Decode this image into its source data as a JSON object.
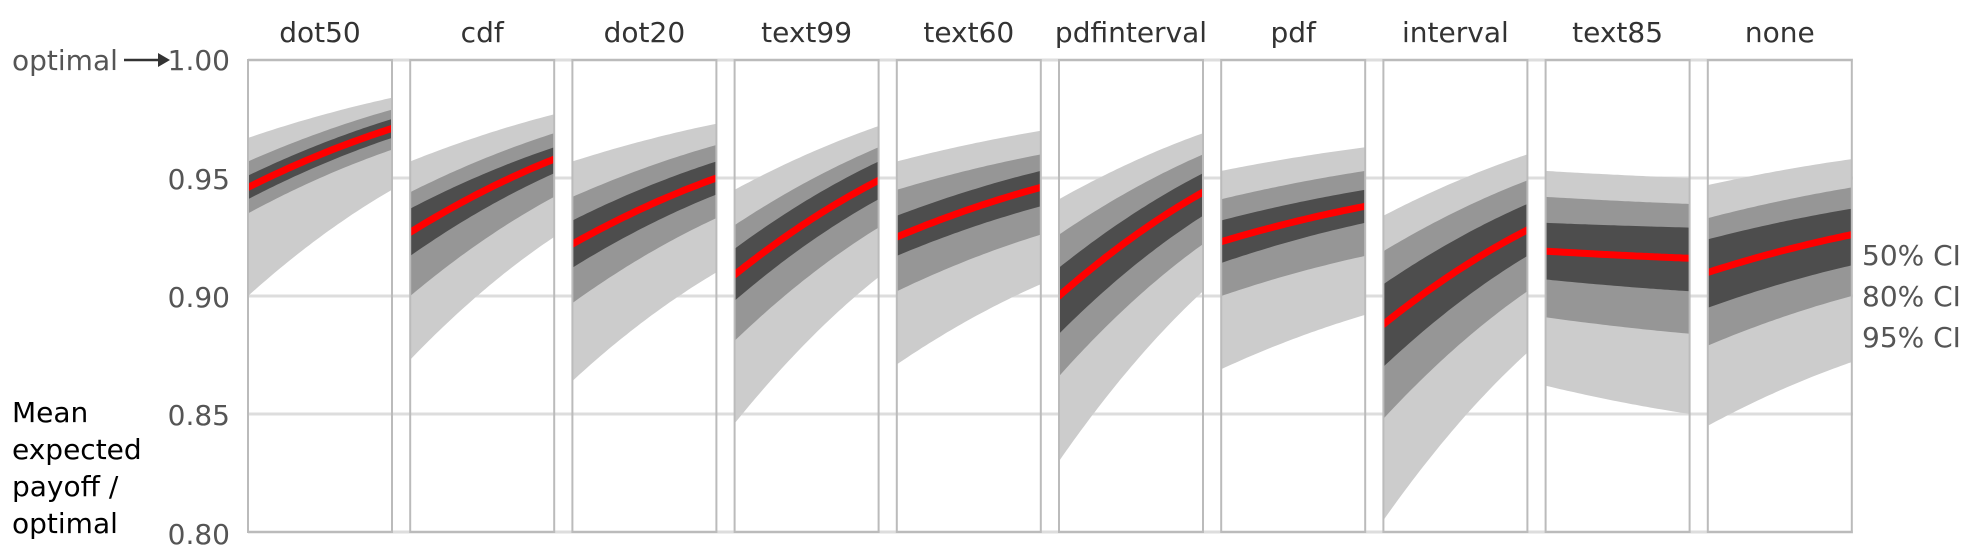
{
  "chart_data": {
    "type": "area",
    "ylabel_lines": [
      "Mean",
      "expected",
      "payoff /",
      "optimal"
    ],
    "ylim": [
      0.8,
      1.0
    ],
    "yticks": [
      "0.80",
      "0.85",
      "0.90",
      "0.95",
      "1.00"
    ],
    "x_range": [
      0,
      1
    ],
    "grid": true,
    "optimal_annotation": {
      "text": "optimal",
      "arrow": "→",
      "at": 1.0
    },
    "legend": [
      "50% CI",
      "80% CI",
      "95% CI"
    ],
    "colors": {
      "ci50": "#4d4d4d",
      "ci80": "#969696",
      "ci95": "#cccccc",
      "median": "#ff0000"
    },
    "facets": [
      {
        "title": "dot50",
        "median": [
          0.946,
          0.971
        ],
        "ci50": [
          [
            0.941,
            0.951
          ],
          [
            0.967,
            0.975
          ]
        ],
        "ci80": [
          [
            0.935,
            0.957
          ],
          [
            0.962,
            0.979
          ]
        ],
        "ci95": [
          [
            0.9,
            0.967
          ],
          [
            0.945,
            0.984
          ]
        ]
      },
      {
        "title": "cdf",
        "median": [
          0.927,
          0.958
        ],
        "ci50": [
          [
            0.917,
            0.937
          ],
          [
            0.952,
            0.963
          ]
        ],
        "ci80": [
          [
            0.9,
            0.944
          ],
          [
            0.942,
            0.969
          ]
        ],
        "ci95": [
          [
            0.873,
            0.957
          ],
          [
            0.925,
            0.977
          ]
        ]
      },
      {
        "title": "dot20",
        "median": [
          0.922,
          0.95
        ],
        "ci50": [
          [
            0.912,
            0.932
          ],
          [
            0.943,
            0.957
          ]
        ],
        "ci80": [
          [
            0.897,
            0.942
          ],
          [
            0.933,
            0.964
          ]
        ],
        "ci95": [
          [
            0.864,
            0.957
          ],
          [
            0.91,
            0.973
          ]
        ]
      },
      {
        "title": "text99",
        "median": [
          0.909,
          0.949
        ],
        "ci50": [
          [
            0.898,
            0.92
          ],
          [
            0.941,
            0.957
          ]
        ],
        "ci80": [
          [
            0.881,
            0.93
          ],
          [
            0.929,
            0.963
          ]
        ],
        "ci95": [
          [
            0.846,
            0.945
          ],
          [
            0.908,
            0.972
          ]
        ]
      },
      {
        "title": "text60",
        "median": [
          0.925,
          0.946
        ],
        "ci50": [
          [
            0.917,
            0.934
          ],
          [
            0.938,
            0.953
          ]
        ],
        "ci80": [
          [
            0.902,
            0.945
          ],
          [
            0.926,
            0.96
          ]
        ],
        "ci95": [
          [
            0.871,
            0.957
          ],
          [
            0.905,
            0.97
          ]
        ]
      },
      {
        "title": "pdfinterval",
        "median": [
          0.9,
          0.944
        ],
        "ci50": [
          [
            0.884,
            0.912
          ],
          [
            0.934,
            0.952
          ]
        ],
        "ci80": [
          [
            0.866,
            0.926
          ],
          [
            0.922,
            0.96
          ]
        ],
        "ci95": [
          [
            0.83,
            0.941
          ],
          [
            0.902,
            0.969
          ]
        ]
      },
      {
        "title": "pdf",
        "median": [
          0.923,
          0.938
        ],
        "ci50": [
          [
            0.914,
            0.932
          ],
          [
            0.931,
            0.945
          ]
        ],
        "ci80": [
          [
            0.9,
            0.941
          ],
          [
            0.917,
            0.953
          ]
        ],
        "ci95": [
          [
            0.869,
            0.953
          ],
          [
            0.892,
            0.963
          ]
        ]
      },
      {
        "title": "interval",
        "median": [
          0.888,
          0.928
        ],
        "ci50": [
          [
            0.87,
            0.905
          ],
          [
            0.917,
            0.939
          ]
        ],
        "ci80": [
          [
            0.848,
            0.919
          ],
          [
            0.902,
            0.949
          ]
        ],
        "ci95": [
          [
            0.805,
            0.934
          ],
          [
            0.876,
            0.96
          ]
        ]
      },
      {
        "title": "text85",
        "median": [
          0.919,
          0.916
        ],
        "ci50": [
          [
            0.907,
            0.931
          ],
          [
            0.902,
            0.929
          ]
        ],
        "ci80": [
          [
            0.891,
            0.942
          ],
          [
            0.884,
            0.939
          ]
        ],
        "ci95": [
          [
            0.862,
            0.953
          ],
          [
            0.85,
            0.95
          ]
        ]
      },
      {
        "title": "none",
        "median": [
          0.91,
          0.926
        ],
        "ci50": [
          [
            0.895,
            0.924
          ],
          [
            0.913,
            0.937
          ]
        ],
        "ci80": [
          [
            0.879,
            0.933
          ],
          [
            0.9,
            0.946
          ]
        ],
        "ci95": [
          [
            0.845,
            0.947
          ],
          [
            0.872,
            0.958
          ]
        ]
      }
    ]
  }
}
